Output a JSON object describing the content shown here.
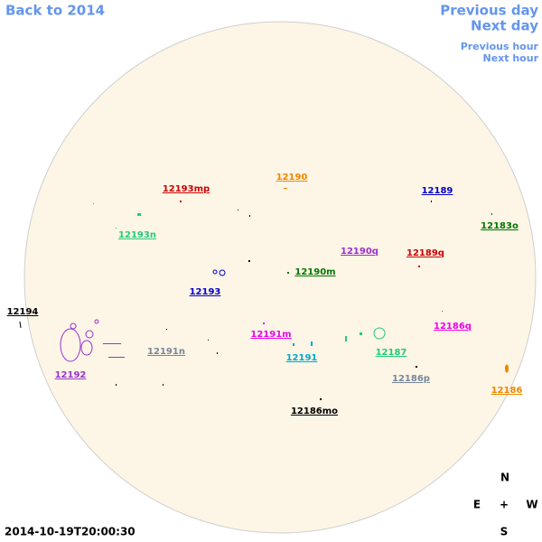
{
  "nav": {
    "back": "Back to 2014",
    "previous_day": "Previous day",
    "next_day": "Next day",
    "previous_hour": "Previous hour",
    "next_hour": "Next hour"
  },
  "regions": [
    {
      "label": "12193mp",
      "color": "#cc0000"
    },
    {
      "label": "12190",
      "color": "#ee8800"
    },
    {
      "label": "12189",
      "color": "#0000cc"
    },
    {
      "label": "12183o",
      "color": "#007700"
    },
    {
      "label": "12193n",
      "color": "#22cc77"
    },
    {
      "label": "12190q",
      "color": "#9933cc"
    },
    {
      "label": "12189q",
      "color": "#cc0000"
    },
    {
      "label": "12190m",
      "color": "#007700"
    },
    {
      "label": "12193",
      "color": "#0000cc"
    },
    {
      "label": "12194",
      "color": "#000000"
    },
    {
      "label": "12191m",
      "color": "#ee00ee"
    },
    {
      "label": "12186q",
      "color": "#ee00ee"
    },
    {
      "label": "12191n",
      "color": "#778899"
    },
    {
      "label": "12187",
      "color": "#22cc77"
    },
    {
      "label": "12191",
      "color": "#00aacc"
    },
    {
      "label": "12192",
      "color": "#9933cc"
    },
    {
      "label": "12186p",
      "color": "#778899"
    },
    {
      "label": "12186",
      "color": "#ee8800"
    },
    {
      "label": "12186mo",
      "color": "#000000"
    }
  ],
  "compass": {
    "north": "N",
    "east": "E",
    "center": "+",
    "west": "W",
    "south": "S"
  },
  "timestamp": "2014-10-19T20:00:30"
}
